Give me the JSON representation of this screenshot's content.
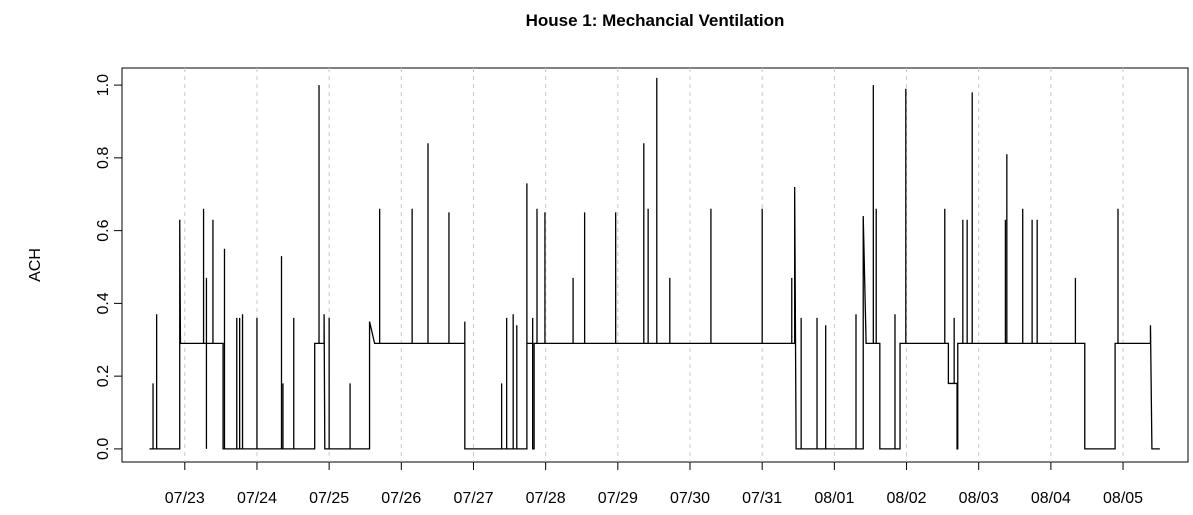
{
  "chart_data": {
    "type": "line",
    "title": "House 1: Mechancial Ventilation",
    "ylabel": "ACH",
    "color": "#000000",
    "grid": true,
    "x": [
      -0.49,
      -0.44,
      -0.44,
      -0.44,
      -0.39,
      -0.39,
      -0.39,
      -0.07,
      -0.07,
      -0.06,
      0.26,
      0.26,
      0.26,
      0.3,
      0.3,
      0.3,
      0.3,
      0.39,
      0.39,
      0.39,
      0.53,
      0.53,
      0.55,
      0.55,
      0.55,
      0.72,
      0.72,
      0.72,
      0.76,
      0.76,
      0.76,
      0.8,
      0.8,
      0.8,
      1.0,
      1.0,
      1.0,
      1.34,
      1.34,
      1.34,
      1.36,
      1.36,
      1.36,
      1.51,
      1.51,
      1.51,
      1.8,
      1.8,
      1.86,
      1.86,
      1.86,
      1.93,
      1.93,
      1.94,
      2.0,
      2.0,
      2.0,
      2.29,
      2.29,
      2.29,
      2.56,
      2.56,
      2.63,
      2.7,
      2.7,
      2.7,
      3.15,
      3.15,
      3.15,
      3.37,
      3.37,
      3.37,
      3.66,
      3.66,
      3.66,
      3.88,
      3.88,
      3.88,
      4.39,
      4.39,
      4.39,
      4.46,
      4.46,
      4.46,
      4.55,
      4.55,
      4.55,
      4.6,
      4.6,
      4.6,
      4.74,
      4.74,
      4.74,
      4.82,
      4.82,
      4.82,
      4.84,
      4.84,
      4.88,
      4.88,
      4.88,
      4.99,
      4.99,
      4.99,
      5.38,
      5.38,
      5.38,
      5.54,
      5.54,
      5.54,
      5.97,
      5.97,
      5.97,
      6.36,
      6.36,
      6.36,
      6.42,
      6.42,
      6.42,
      6.54,
      6.54,
      6.54,
      6.72,
      6.72,
      6.72,
      7.29,
      7.29,
      7.29,
      8.0,
      8.0,
      8.0,
      8.41,
      8.41,
      8.41,
      8.45,
      8.45,
      8.47,
      8.54,
      8.54,
      8.54,
      8.76,
      8.76,
      8.76,
      8.88,
      8.88,
      8.88,
      9.3,
      9.3,
      9.3,
      9.4,
      9.4,
      9.44,
      9.54,
      9.54,
      9.54,
      9.58,
      9.58,
      9.58,
      9.63,
      9.63,
      9.84,
      9.84,
      9.84,
      9.91,
      9.91,
      9.99,
      9.99,
      9.99,
      10.53,
      10.53,
      10.53,
      10.58,
      10.58,
      10.66,
      10.66,
      10.66,
      10.7,
      10.7,
      10.71,
      10.71,
      10.78,
      10.78,
      10.78,
      10.84,
      10.84,
      10.84,
      10.91,
      10.91,
      10.91,
      11.37,
      11.37,
      11.37,
      11.39,
      11.39,
      11.39,
      11.61,
      11.61,
      11.61,
      11.74,
      11.74,
      11.74,
      11.81,
      11.81,
      11.81,
      12.34,
      12.34,
      12.34,
      12.47,
      12.47,
      12.89,
      12.89,
      12.93,
      12.93,
      12.93,
      13.38,
      13.38,
      13.4,
      13.51
    ],
    "values": [
      0,
      0,
      0.18,
      0,
      0,
      0.37,
      0,
      0,
      0.63,
      0.29,
      0.29,
      0.66,
      0.29,
      0.29,
      0.47,
      0,
      0.29,
      0.29,
      0.63,
      0.29,
      0.29,
      0,
      0,
      0.55,
      0,
      0,
      0.36,
      0,
      0,
      0.36,
      0,
      0,
      0.37,
      0,
      0,
      0.36,
      0,
      0,
      0.53,
      0,
      0,
      0.18,
      0,
      0,
      0.36,
      0,
      0,
      0.29,
      0.29,
      1.0,
      0.29,
      0.29,
      0.37,
      0,
      0,
      0.36,
      0,
      0,
      0.18,
      0,
      0,
      0.35,
      0.29,
      0.29,
      0.66,
      0.29,
      0.29,
      0.66,
      0.29,
      0.29,
      0.84,
      0.29,
      0.29,
      0.65,
      0.29,
      0.29,
      0.35,
      0,
      0,
      0.18,
      0,
      0,
      0.36,
      0,
      0,
      0.37,
      0,
      0,
      0.34,
      0,
      0,
      0.73,
      0.29,
      0.29,
      0.36,
      0,
      0,
      0.29,
      0.29,
      0.66,
      0.29,
      0.29,
      0.65,
      0.29,
      0.29,
      0.47,
      0.29,
      0.29,
      0.65,
      0.29,
      0.29,
      0.65,
      0.29,
      0.29,
      0.84,
      0.29,
      0.29,
      0.66,
      0.29,
      0.29,
      1.02,
      0.29,
      0.29,
      0.47,
      0.29,
      0.29,
      0.66,
      0.29,
      0.29,
      0.66,
      0.29,
      0.29,
      0.47,
      0.29,
      0.29,
      0.72,
      0,
      0,
      0.36,
      0,
      0,
      0.36,
      0,
      0,
      0.34,
      0,
      0,
      0.37,
      0,
      0,
      0.64,
      0.29,
      0.29,
      1.0,
      0.29,
      0.29,
      0.66,
      0.29,
      0.29,
      0,
      0,
      0.37,
      0,
      0,
      0.29,
      0.29,
      0.99,
      0.29,
      0.29,
      0.66,
      0.29,
      0.29,
      0.18,
      0.18,
      0.36,
      0.18,
      0.18,
      0,
      0,
      0.29,
      0.29,
      0.63,
      0.29,
      0.29,
      0.63,
      0.29,
      0.29,
      0.98,
      0.29,
      0.29,
      0.63,
      0.29,
      0.29,
      0.81,
      0.29,
      0.29,
      0.66,
      0.29,
      0.29,
      0.63,
      0.29,
      0.29,
      0.63,
      0.29,
      0.29,
      0.47,
      0.29,
      0.29,
      0,
      0,
      0.29,
      0.29,
      0.66,
      0.29,
      0.29,
      0.34,
      0,
      0
    ],
    "xlim": [
      -0.87,
      13.9
    ],
    "xticks": [
      {
        "value": 0,
        "label": "07/23"
      },
      {
        "value": 1,
        "label": "07/24"
      },
      {
        "value": 2,
        "label": "07/25"
      },
      {
        "value": 3,
        "label": "07/26"
      },
      {
        "value": 4,
        "label": "07/27"
      },
      {
        "value": 5,
        "label": "07/28"
      },
      {
        "value": 6,
        "label": "07/29"
      },
      {
        "value": 7,
        "label": "07/30"
      },
      {
        "value": 8,
        "label": "07/31"
      },
      {
        "value": 9,
        "label": "08/01"
      },
      {
        "value": 10,
        "label": "08/02"
      },
      {
        "value": 11,
        "label": "08/03"
      },
      {
        "value": 12,
        "label": "08/04"
      },
      {
        "value": 13,
        "label": "08/05"
      }
    ],
    "ylim": [
      -0.036,
      1.047
    ],
    "yticks": [
      {
        "value": 0,
        "label": "0.0"
      },
      0.2,
      0.4,
      0.6,
      0.8,
      {
        "value": 1,
        "label": "1.0"
      }
    ]
  }
}
